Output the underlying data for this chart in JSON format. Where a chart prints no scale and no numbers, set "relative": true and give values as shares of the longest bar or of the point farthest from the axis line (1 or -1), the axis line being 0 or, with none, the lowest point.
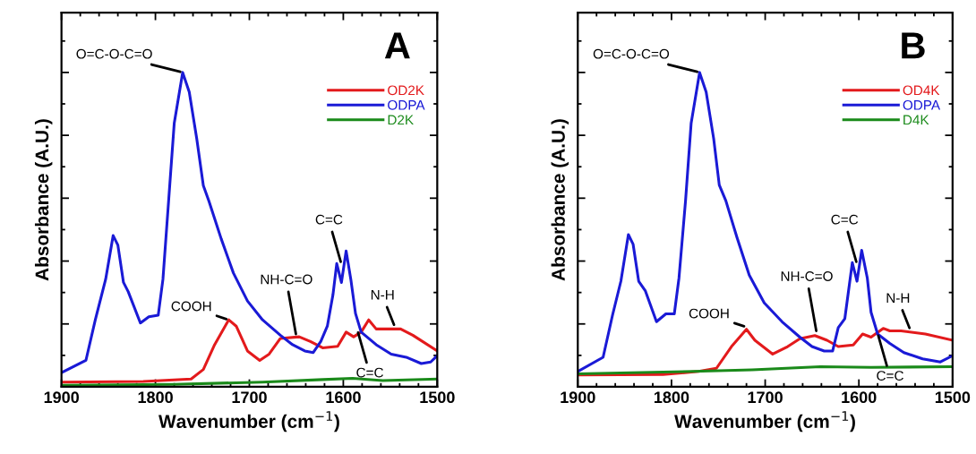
{
  "chart_data": [
    {
      "type": "line",
      "relative": true,
      "xlabel": "Wavenumber (cm$^{−1}$)",
      "ylabel": "Absorbance (A.U.)",
      "xlim": [
        1900,
        1500
      ],
      "xticks": [
        1900,
        1800,
        1700,
        1600,
        1500
      ],
      "legend": "right",
      "tick_labels": "x",
      "grid": false,
      "series": [
        {
          "name": "OD2K",
          "color": "#e31a1c",
          "x": [
            1900,
            1813,
            1762,
            1749,
            1737,
            1722,
            1714,
            1702,
            1689,
            1679,
            1667,
            1647,
            1635,
            1622,
            1606,
            1597,
            1589,
            1581,
            1573,
            1565,
            1539,
            1526,
            1500
          ],
          "values": [
            0.015,
            0.017,
            0.025,
            0.055,
            0.134,
            0.213,
            0.193,
            0.114,
            0.084,
            0.104,
            0.154,
            0.159,
            0.144,
            0.124,
            0.129,
            0.174,
            0.159,
            0.174,
            0.213,
            0.184,
            0.184,
            0.164,
            0.114
          ]
        },
        {
          "name": "ODPA",
          "color": "#1a1ad6",
          "x": [
            1900,
            1874,
            1864,
            1853,
            1845,
            1840,
            1834,
            1829,
            1816,
            1807,
            1797,
            1792,
            1786,
            1780,
            1771,
            1764,
            1756,
            1749,
            1743,
            1730,
            1717,
            1702,
            1686,
            1667,
            1654,
            1641,
            1632,
            1624,
            1617,
            1611,
            1607,
            1602,
            1597,
            1592,
            1587,
            1581,
            1565,
            1549,
            1533,
            1517,
            1507,
            1500
          ],
          "values": [
            0.045,
            0.084,
            0.213,
            0.342,
            0.481,
            0.451,
            0.332,
            0.303,
            0.203,
            0.223,
            0.228,
            0.342,
            0.59,
            0.838,
            1.0,
            0.938,
            0.789,
            0.64,
            0.59,
            0.471,
            0.362,
            0.273,
            0.213,
            0.164,
            0.134,
            0.114,
            0.109,
            0.144,
            0.193,
            0.293,
            0.392,
            0.332,
            0.432,
            0.342,
            0.233,
            0.174,
            0.134,
            0.104,
            0.094,
            0.074,
            0.079,
            0.099
          ]
        },
        {
          "name": "D2K",
          "color": "#1a8a1a",
          "x": [
            1900,
            1781,
            1686,
            1622,
            1590,
            1558,
            1500
          ],
          "values": [
            0.005,
            0.008,
            0.015,
            0.023,
            0.027,
            0.02,
            0.025
          ]
        }
      ],
      "annotations": [
        "A",
        {
          "text": "O=C-O-C=O",
          "x": 1771,
          "y": 1.0
        },
        {
          "text": "COOH",
          "x": 1722,
          "y": 0.213
        },
        {
          "text": "NH-C=O",
          "x": 1650,
          "y": 0.16
        },
        {
          "text": "C=C",
          "x": 1602,
          "y": 0.39
        },
        {
          "text": "C=C",
          "x": 1585,
          "y": 0.18
        },
        {
          "text": "N-H",
          "x": 1545,
          "y": 0.19
        }
      ]
    },
    {
      "type": "line",
      "relative": true,
      "xlabel": "Wavenumber (cm$^{−1}$)",
      "ylabel": "Absorbance (A.U.)",
      "xlim": [
        1900,
        1500
      ],
      "xticks": [
        1900,
        1800,
        1700,
        1600,
        1500
      ],
      "legend": "right",
      "tick_labels": "x",
      "grid": false,
      "series": [
        {
          "name": "OD4K",
          "color": "#e31a1c",
          "x": [
            1900,
            1809,
            1771,
            1752,
            1736,
            1720,
            1711,
            1692,
            1676,
            1663,
            1647,
            1634,
            1622,
            1606,
            1596,
            1587,
            1574,
            1567,
            1555,
            1529,
            1500
          ],
          "values": [
            0.038,
            0.039,
            0.049,
            0.059,
            0.128,
            0.183,
            0.148,
            0.104,
            0.128,
            0.153,
            0.163,
            0.148,
            0.128,
            0.133,
            0.168,
            0.158,
            0.186,
            0.178,
            0.178,
            0.168,
            0.148
          ]
        },
        {
          "name": "ODPA",
          "color": "#1a1ad6",
          "x": [
            1900,
            1873,
            1863,
            1854,
            1846,
            1841,
            1835,
            1828,
            1816,
            1806,
            1797,
            1792,
            1785,
            1779,
            1770,
            1763,
            1755,
            1749,
            1742,
            1730,
            1717,
            1701,
            1682,
            1663,
            1650,
            1637,
            1628,
            1622,
            1615,
            1607,
            1602,
            1597,
            1591,
            1587,
            1580,
            1567,
            1552,
            1532,
            1513,
            1500
          ],
          "values": [
            0.049,
            0.094,
            0.227,
            0.336,
            0.484,
            0.454,
            0.336,
            0.306,
            0.207,
            0.232,
            0.232,
            0.346,
            0.592,
            0.839,
            1.0,
            0.938,
            0.79,
            0.642,
            0.592,
            0.474,
            0.355,
            0.267,
            0.207,
            0.158,
            0.128,
            0.114,
            0.114,
            0.188,
            0.217,
            0.395,
            0.336,
            0.434,
            0.346,
            0.237,
            0.168,
            0.138,
            0.109,
            0.089,
            0.079,
            0.099
          ]
        },
        {
          "name": "D4K",
          "color": "#1a8a1a",
          "x": [
            1900,
            1777,
            1714,
            1641,
            1587,
            1500
          ],
          "values": [
            0.041,
            0.049,
            0.054,
            0.064,
            0.062,
            0.064
          ]
        }
      ],
      "annotations": [
        "B",
        {
          "text": "O=C-O-C=O",
          "x": 1770,
          "y": 1.0
        },
        {
          "text": "COOH",
          "x": 1720,
          "y": 0.19
        },
        {
          "text": "NH-C=O",
          "x": 1645,
          "y": 0.17
        },
        {
          "text": "C=C",
          "x": 1602,
          "y": 0.39
        },
        {
          "text": "C=C",
          "x": 1580,
          "y": 0.17
        },
        {
          "text": "N-H",
          "x": 1545,
          "y": 0.18
        }
      ]
    }
  ]
}
